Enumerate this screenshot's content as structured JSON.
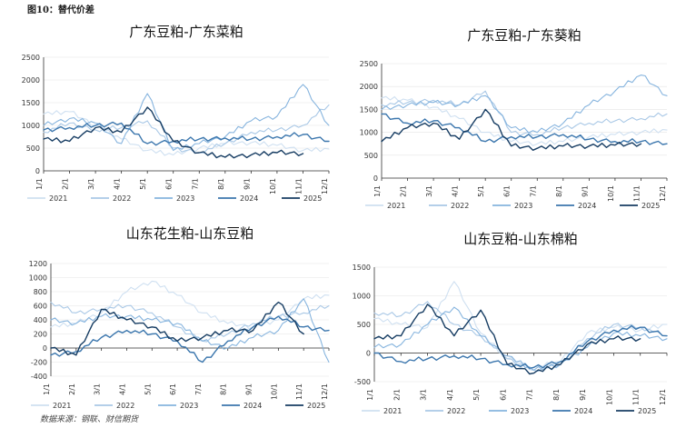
{
  "figure": {
    "caption": "图10：替代价差",
    "source": "数据来源：钢联、财信期货"
  },
  "colors": {
    "2021": "#cfe0f1",
    "2022": "#a9c8e6",
    "2023": "#86b4de",
    "2024": "#3b76ad",
    "2025": "#173d63"
  },
  "chart_data": [
    {
      "type": "line",
      "title": "广东豆粕-广东菜粕",
      "xlabel": "",
      "ylabel": "",
      "categories": [
        "1/1",
        "2/1",
        "3/1",
        "4/1",
        "5/1",
        "6/1",
        "7/1",
        "8/1",
        "9/1",
        "10/1",
        "11/1",
        "12/1"
      ],
      "ylim": [
        0,
        2500
      ],
      "yticks": [
        0,
        500,
        1000,
        1500,
        2000,
        2500
      ],
      "legend": "bottom",
      "series": [
        {
          "name": "2021",
          "values": [
            1250,
            1300,
            1000,
            700,
            450,
            350,
            500,
            600,
            620,
            560,
            450,
            480
          ],
          "note": "mid-month observations Jan→Dec"
        },
        {
          "name": "2022",
          "values": [
            850,
            1050,
            900,
            950,
            1100,
            500,
            400,
            600,
            850,
            900,
            1000,
            1450
          ]
        },
        {
          "name": "2023",
          "values": [
            1000,
            1150,
            1050,
            600,
            1700,
            450,
            600,
            750,
            1100,
            1200,
            1900,
            1000
          ]
        },
        {
          "name": "2024",
          "values": [
            900,
            950,
            1000,
            1050,
            600,
            650,
            700,
            720,
            700,
            750,
            800,
            650
          ]
        },
        {
          "name": "2025",
          "values": [
            700,
            650,
            950,
            850,
            1400,
            650,
            400,
            300,
            350,
            400,
            380,
            null
          ]
        }
      ]
    },
    {
      "type": "line",
      "title": "广东豆粕-广东葵粕",
      "xlabel": "",
      "ylabel": "",
      "categories": [
        "1/1",
        "2/1",
        "3/1",
        "4/1",
        "5/1",
        "6/1",
        "7/1",
        "8/1",
        "9/1",
        "10/1",
        "11/1",
        "12/1"
      ],
      "ylim": [
        0,
        2500
      ],
      "yticks": [
        0,
        500,
        1000,
        1500,
        2000,
        2500
      ],
      "legend": "bottom",
      "series": [
        {
          "name": "2021",
          "values": [
            1750,
            1700,
            1550,
            1300,
            1000,
            800,
            750,
            800,
            900,
            950,
            1000,
            1050
          ]
        },
        {
          "name": "2022",
          "values": [
            1600,
            1650,
            1700,
            1600,
            1900,
            1000,
            950,
            1100,
            1200,
            1250,
            1300,
            1400
          ]
        },
        {
          "name": "2023",
          "values": [
            1500,
            1600,
            1650,
            1600,
            1800,
            1100,
            1000,
            1200,
            1600,
            1900,
            2250,
            1800
          ]
        },
        {
          "name": "2024",
          "values": [
            1400,
            1200,
            1250,
            1100,
            800,
            900,
            900,
            950,
            850,
            800,
            800,
            750
          ]
        },
        {
          "name": "2025",
          "values": [
            800,
            1100,
            1200,
            850,
            1500,
            700,
            650,
            700,
            700,
            720,
            750,
            null
          ]
        }
      ]
    },
    {
      "type": "line",
      "title": "山东花生粕-山东豆粕",
      "xlabel": "",
      "ylabel": "",
      "categories": [
        "1/1",
        "2/1",
        "3/1",
        "4/1",
        "5/1",
        "6/1",
        "7/1",
        "8/1",
        "9/1",
        "10/1",
        "11/1",
        "12/1"
      ],
      "ylim": [
        -400,
        1200
      ],
      "yticks": [
        -400,
        -200,
        0,
        200,
        400,
        600,
        800,
        1000,
        1200
      ],
      "legend": "bottom",
      "series": [
        {
          "name": "2021",
          "values": [
            300,
            350,
            500,
            800,
            950,
            750,
            500,
            350,
            300,
            400,
            700,
            750
          ]
        },
        {
          "name": "2022",
          "values": [
            650,
            500,
            550,
            600,
            500,
            300,
            100,
            200,
            350,
            450,
            500,
            600
          ]
        },
        {
          "name": "2023",
          "values": [
            400,
            350,
            450,
            450,
            400,
            350,
            100,
            0,
            150,
            250,
            700,
            -200
          ]
        },
        {
          "name": "2024",
          "values": [
            -100,
            -50,
            150,
            250,
            200,
            100,
            -200,
            100,
            300,
            450,
            300,
            250
          ]
        },
        {
          "name": "2025",
          "values": [
            0,
            -100,
            550,
            400,
            300,
            100,
            150,
            250,
            250,
            650,
            200,
            null
          ]
        }
      ]
    },
    {
      "type": "line",
      "title": "山东豆粕-山东棉粕",
      "xlabel": "",
      "ylabel": "",
      "categories": [
        "1/1",
        "2/1",
        "3/1",
        "4/1",
        "5/1",
        "6/1",
        "7/1",
        "8/1",
        "9/1",
        "10/1",
        "11/1",
        "12/1"
      ],
      "ylim": [
        -500,
        1500
      ],
      "yticks": [
        -500,
        0,
        500,
        1000,
        1500
      ],
      "legend": "bottom",
      "series": [
        {
          "name": "2021",
          "values": [
            600,
            500,
            450,
            1250,
            350,
            -100,
            -250,
            -150,
            350,
            450,
            400,
            500
          ]
        },
        {
          "name": "2022",
          "values": [
            700,
            650,
            900,
            500,
            300,
            -100,
            -300,
            -200,
            250,
            500,
            450,
            300
          ]
        },
        {
          "name": "2023",
          "values": [
            100,
            150,
            500,
            800,
            300,
            -50,
            -300,
            -200,
            100,
            350,
            300,
            250
          ]
        },
        {
          "name": "2024",
          "values": [
            0,
            -150,
            -100,
            -50,
            -100,
            -200,
            -250,
            -150,
            200,
            400,
            450,
            300
          ]
        },
        {
          "name": "2025",
          "values": [
            250,
            300,
            850,
            300,
            750,
            -200,
            -350,
            -200,
            150,
            250,
            250,
            null
          ]
        }
      ]
    }
  ]
}
